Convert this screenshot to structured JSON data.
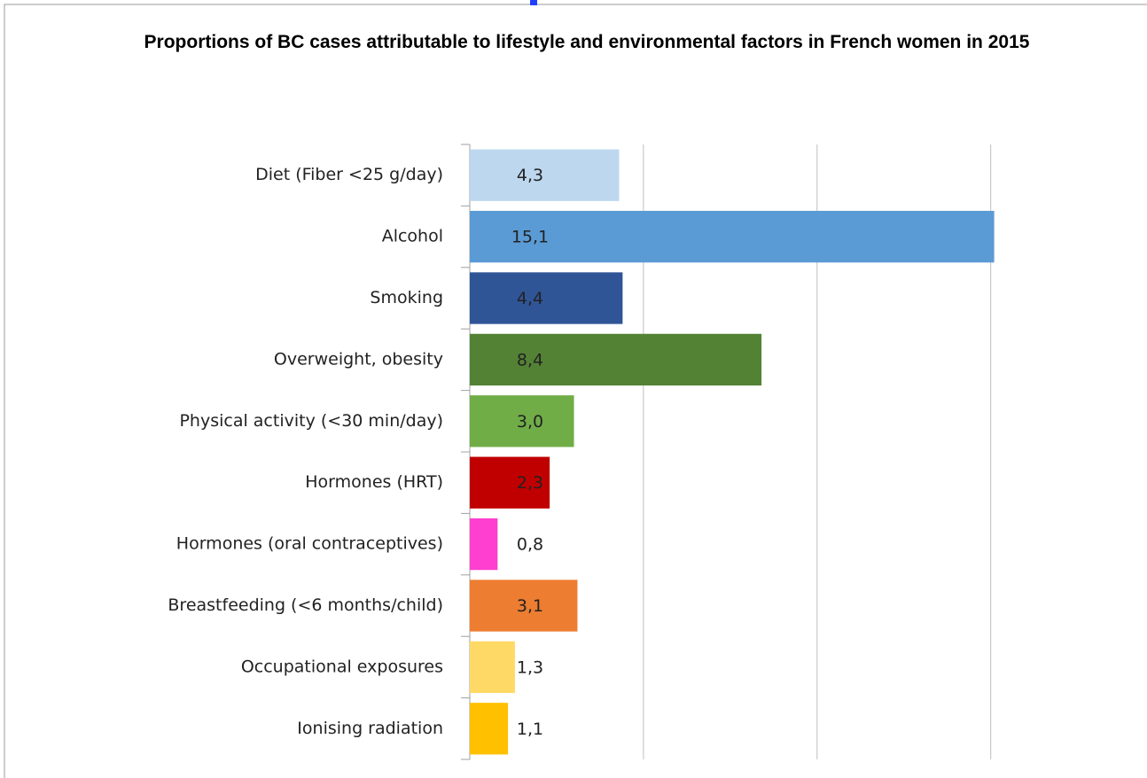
{
  "chart_data": {
    "type": "hbar",
    "title": "Proportions of BC cases attributable to lifestyle and environmental factors in French women in 2015",
    "categories": [
      "Diet (Fiber <25 g/day)",
      "Alcohol",
      "Smoking",
      "Overweight, obesity",
      "Physical activity (<30 min/day)",
      "Hormones (HRT)",
      "Hormones (oral contraceptives)",
      "Breastfeeding (<6 months/child)",
      "Occupational exposures",
      "Ionising radiation"
    ],
    "values": [
      4.3,
      15.1,
      4.4,
      8.4,
      3.0,
      2.3,
      0.8,
      3.1,
      1.3,
      1.1
    ],
    "value_labels": [
      "4,3",
      "15,1",
      "4,4",
      "8,4",
      "3,0",
      "2,3",
      "0,8",
      "3,1",
      "1,3",
      "1,1"
    ],
    "colors": [
      "#bdd7ee",
      "#5b9bd5",
      "#2f5597",
      "#548235",
      "#70ad47",
      "#c00000",
      "#ff3fcf",
      "#ed7d31",
      "#ffd966",
      "#ffc000"
    ],
    "xlim": [
      0,
      19.5
    ],
    "xticks": [
      5,
      10,
      15
    ],
    "grid": true
  }
}
